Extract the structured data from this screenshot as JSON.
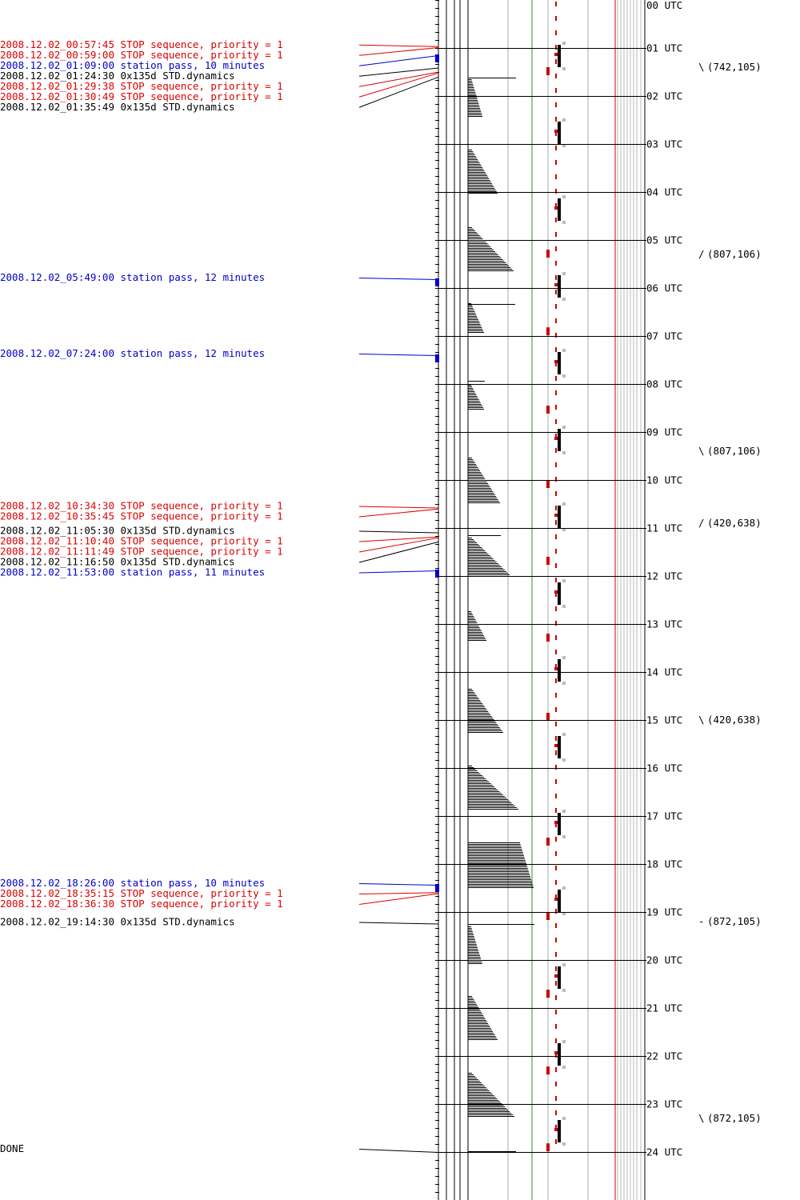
{
  "colors": {
    "stop": "#dd0000",
    "station": "#0000cc",
    "dynamics": "#000000",
    "grid": "#000000",
    "green_line": "#2f8f2f",
    "red_line": "#cc0000",
    "gray_line": "#aaaaaa"
  },
  "events": [
    {
      "time": "2008.12.02_00:57:45",
      "desc": "STOP sequence, priority = 1",
      "type": "stop"
    },
    {
      "time": "2008.12.02_00:59:00",
      "desc": "STOP sequence, priority = 1",
      "type": "stop"
    },
    {
      "time": "2008.12.02_01:09:00",
      "desc": "station pass, 10 minutes",
      "type": "station"
    },
    {
      "time": "2008.12.02_01:24:30",
      "desc": "0x135d STD.dynamics",
      "type": "dynamics"
    },
    {
      "time": "2008.12.02_01:29:38",
      "desc": "STOP sequence, priority = 1",
      "type": "stop"
    },
    {
      "time": "2008.12.02_01:30:49",
      "desc": "STOP sequence, priority = 1",
      "type": "stop"
    },
    {
      "time": "2008.12.02_01:35:49",
      "desc": "0x135d STD.dynamics",
      "type": "dynamics"
    },
    {
      "time": "2008.12.02_05:49:00",
      "desc": "station pass, 12 minutes",
      "type": "station"
    },
    {
      "time": "2008.12.02_07:24:00",
      "desc": "station pass, 12 minutes",
      "type": "station"
    },
    {
      "time": "2008.12.02_10:34:30",
      "desc": "STOP sequence, priority = 1",
      "type": "stop"
    },
    {
      "time": "2008.12.02_10:35:45",
      "desc": "STOP sequence, priority = 1",
      "type": "stop"
    },
    {
      "time": "2008.12.02_11:05:30",
      "desc": "0x135d STD.dynamics",
      "type": "dynamics"
    },
    {
      "time": "2008.12.02_11:10:40",
      "desc": "STOP sequence, priority = 1",
      "type": "stop"
    },
    {
      "time": "2008.12.02_11:11:49",
      "desc": "STOP sequence, priority = 1",
      "type": "stop"
    },
    {
      "time": "2008.12.02_11:16:50",
      "desc": "0x135d STD.dynamics",
      "type": "dynamics"
    },
    {
      "time": "2008.12.02_11:53:00",
      "desc": "station pass, 11 minutes",
      "type": "station"
    },
    {
      "time": "2008.12.02_18:26:00",
      "desc": "station pass, 10 minutes",
      "type": "station"
    },
    {
      "time": "2008.12.02_18:35:15",
      "desc": "STOP sequence, priority = 1",
      "type": "stop"
    },
    {
      "time": "2008.12.02_18:36:30",
      "desc": "STOP sequence, priority = 1",
      "type": "stop"
    },
    {
      "time": "2008.12.02_19:14:30",
      "desc": "0x135d STD.dynamics",
      "type": "dynamics"
    }
  ],
  "done_label": "DONE",
  "hour_labels": [
    "00 UTC",
    "01 UTC",
    "02 UTC",
    "03 UTC",
    "04 UTC",
    "05 UTC",
    "06 UTC",
    "07 UTC",
    "08 UTC",
    "09 UTC",
    "10 UTC",
    "11 UTC",
    "12 UTC",
    "13 UTC",
    "14 UTC",
    "15 UTC",
    "16 UTC",
    "17 UTC",
    "18 UTC",
    "19 UTC",
    "20 UTC",
    "21 UTC",
    "22 UTC",
    "23 UTC",
    "24 UTC"
  ],
  "attitude_markers": [
    {
      "hour": 1.4,
      "symbol": "\\",
      "label": "(742,105)"
    },
    {
      "hour": 5.3,
      "symbol": "/",
      "label": "(807,106)"
    },
    {
      "hour": 9.4,
      "symbol": "\\",
      "label": "(807,106)"
    },
    {
      "hour": 10.9,
      "symbol": "/",
      "label": "(420,638)"
    },
    {
      "hour": 15.0,
      "symbol": "\\",
      "label": "(420,638)"
    },
    {
      "hour": 19.2,
      "symbol": "-",
      "label": "(872,105)"
    },
    {
      "hour": 23.3,
      "symbol": "\\",
      "label": "(872,105)"
    }
  ],
  "histograms": [
    {
      "start_hour": 1.62,
      "end_hour": 2.42,
      "min_len": 4,
      "max_len": 18
    },
    {
      "start_hour": 3.12,
      "end_hour": 4.03,
      "min_len": 5,
      "max_len": 37
    },
    {
      "start_hour": 4.73,
      "end_hour": 5.63,
      "min_len": 5,
      "max_len": 57
    },
    {
      "start_hour": 6.32,
      "end_hour": 6.92,
      "min_len": 4,
      "max_len": 20
    },
    {
      "start_hour": 8.02,
      "end_hour": 8.52,
      "min_len": 4,
      "max_len": 20
    },
    {
      "start_hour": 9.53,
      "end_hour": 10.45,
      "min_len": 5,
      "max_len": 40
    },
    {
      "start_hour": 11.2,
      "end_hour": 11.95,
      "min_len": 5,
      "max_len": 52
    },
    {
      "start_hour": 12.73,
      "end_hour": 13.32,
      "min_len": 4,
      "max_len": 23
    },
    {
      "start_hour": 14.35,
      "end_hour": 15.25,
      "min_len": 5,
      "max_len": 44
    },
    {
      "start_hour": 15.95,
      "end_hour": 16.85,
      "min_len": 5,
      "max_len": 63
    },
    {
      "start_hour": 17.55,
      "end_hour": 18.48,
      "min_len": 65,
      "max_len": 82
    },
    {
      "start_hour": 19.3,
      "end_hour": 20.07,
      "min_len": 4,
      "max_len": 18
    },
    {
      "start_hour": 20.75,
      "end_hour": 21.65,
      "min_len": 5,
      "max_len": 37
    },
    {
      "start_hour": 22.35,
      "end_hour": 23.25,
      "min_len": 5,
      "max_len": 58
    }
  ]
}
